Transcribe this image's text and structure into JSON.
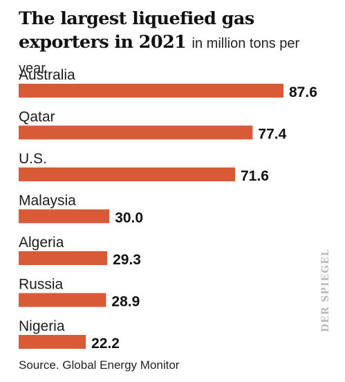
{
  "title": {
    "main": "The largest liquefied gas exporters in 2021",
    "subtitle": "in million tons per year"
  },
  "source": "Source. Global Energy Monitor",
  "brand": "DER SPIEGEL",
  "colors": {
    "bar": "#d95a36",
    "text": "#111111",
    "brand": "#b9b9b9"
  },
  "chart_data": {
    "type": "bar",
    "orientation": "horizontal",
    "title": "The largest liquefied gas exporters in 2021",
    "subtitle": "in million tons per year",
    "categories": [
      "Australia",
      "Qatar",
      "U.S.",
      "Malaysia",
      "Algeria",
      "Russia",
      "Nigeria"
    ],
    "values": [
      87.6,
      77.4,
      71.6,
      30.0,
      29.3,
      28.9,
      22.2
    ],
    "value_labels": [
      "87.6",
      "77.4",
      "71.6",
      "30.0",
      "29.3",
      "28.9",
      "22.2"
    ],
    "xlim": [
      0,
      87.6
    ],
    "grid": false,
    "legend": "none"
  }
}
